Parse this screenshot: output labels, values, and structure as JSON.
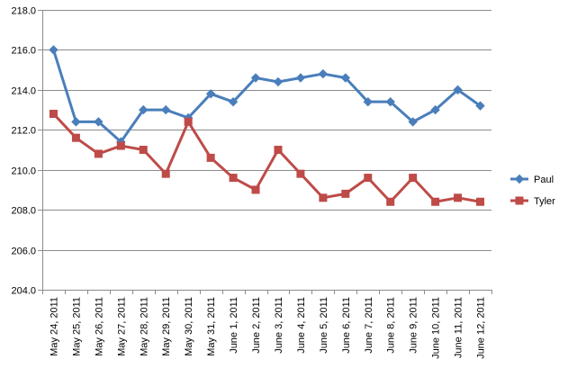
{
  "chart_data": {
    "type": "line",
    "categories": [
      "May 24, 2011",
      "May 25, 2011",
      "May 26, 2011",
      "May 27, 2011",
      "May 28, 2011",
      "May 29, 2011",
      "May 30, 2011",
      "May 31, 2011",
      "June 1, 2011",
      "June 2, 2011",
      "June 3, 2011",
      "June 4, 2011",
      "June 5, 2011",
      "June 6, 2011",
      "June 7, 2011",
      "June 8, 2011",
      "June 9, 2011",
      "June 10, 2011",
      "June 11, 2011",
      "June 12, 2011"
    ],
    "ylim": [
      204.0,
      218.0
    ],
    "yticks": [
      "204.0",
      "206.0",
      "208.0",
      "210.0",
      "212.0",
      "214.0",
      "216.0",
      "218.0"
    ],
    "grid": true,
    "legend_position": "right",
    "series": [
      {
        "name": "Paul",
        "color": "#4A7EBB",
        "marker": "diamond",
        "values": [
          216.0,
          212.4,
          212.4,
          211.4,
          213.0,
          213.0,
          212.6,
          213.8,
          213.4,
          214.6,
          214.4,
          214.6,
          214.8,
          214.6,
          213.4,
          213.4,
          212.4,
          213.0,
          214.0,
          213.2
        ]
      },
      {
        "name": "Tyler",
        "color": "#BE4B48",
        "marker": "square",
        "values": [
          212.8,
          211.6,
          210.8,
          211.2,
          211.0,
          209.8,
          212.4,
          210.6,
          209.6,
          209.0,
          211.0,
          209.8,
          208.6,
          208.8,
          209.6,
          208.4,
          209.6,
          208.4,
          208.6,
          208.4
        ]
      }
    ]
  }
}
